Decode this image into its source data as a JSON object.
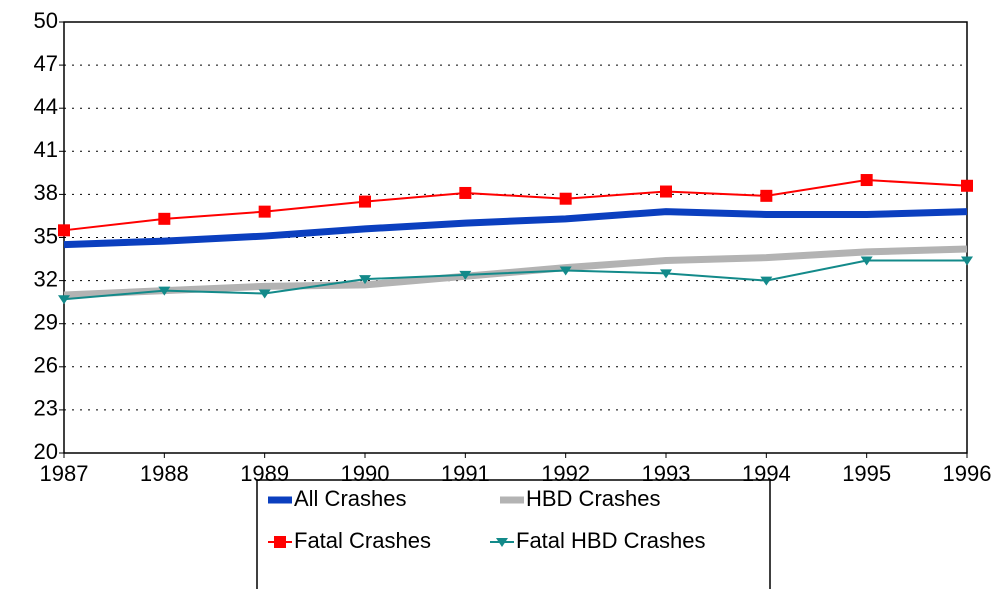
{
  "chart_data": {
    "type": "line",
    "x": [
      1987,
      1988,
      1989,
      1990,
      1991,
      1992,
      1993,
      1994,
      1995,
      1996
    ],
    "xlim": [
      1987,
      1996
    ],
    "xticks": [
      1987,
      1988,
      1989,
      1990,
      1991,
      1992,
      1993,
      1994,
      1995,
      1996
    ],
    "ylim": [
      20,
      50
    ],
    "yticks": [
      20,
      23,
      26,
      29,
      32,
      35,
      38,
      41,
      44,
      47,
      50
    ],
    "grid": true,
    "legend": "bottom",
    "series": [
      {
        "name": "All Crashes",
        "color": "#0b3fbf",
        "values": [
          34.5,
          34.75,
          35.1,
          35.6,
          36.0,
          36.3,
          36.8,
          36.6,
          36.6,
          36.8
        ]
      },
      {
        "name": "HBD Crashes",
        "color": "#b3b3b3",
        "values": [
          31.0,
          31.3,
          31.6,
          31.7,
          32.3,
          32.9,
          33.4,
          33.6,
          34.0,
          34.2
        ]
      },
      {
        "name": "Fatal Crashes",
        "color": "#ff0000",
        "marker": "square",
        "values": [
          35.5,
          36.3,
          36.8,
          37.5,
          38.1,
          37.7,
          38.2,
          37.9,
          39.0,
          38.6
        ]
      },
      {
        "name": "Fatal HBD Crashes",
        "color": "#138a8a",
        "marker": "triangle-down",
        "values": [
          30.7,
          31.3,
          31.1,
          32.1,
          32.4,
          32.7,
          32.5,
          32.0,
          33.4,
          33.4
        ]
      }
    ]
  }
}
